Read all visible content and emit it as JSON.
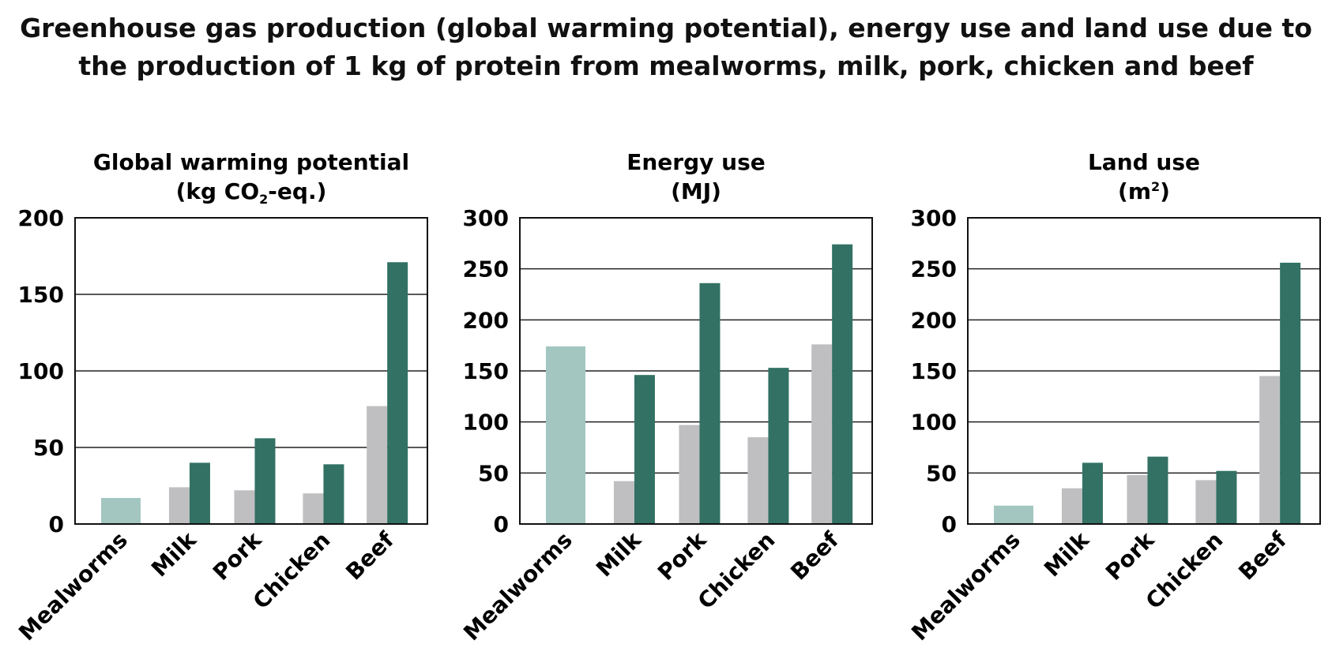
{
  "title": {
    "line1": "Greenhouse gas production (global warming potential), energy use and land use due to",
    "line2": "the production of 1 kg of protein from mealworms, milk, pork, chicken and beef"
  },
  "colors": {
    "mealworms": "#a3c6c0",
    "lower": "#bfbfc1",
    "upper": "#327163",
    "grid": "#222222"
  },
  "chart_data": [
    {
      "type": "bar",
      "title": "Global warming potential",
      "unit_prefix": "(kg CO",
      "unit_sub": "2",
      "unit_suffix": "-eq.)",
      "categories": [
        "Mealworms",
        "Milk",
        "Pork",
        "Chicken",
        "Beef"
      ],
      "ylim": [
        0,
        200
      ],
      "yticks": [
        0,
        50,
        100,
        150,
        200
      ],
      "grid": true,
      "series": [
        {
          "values": [
            17,
            24,
            22,
            20,
            77
          ]
        },
        {
          "values": [
            null,
            40,
            56,
            39,
            171
          ]
        }
      ]
    },
    {
      "type": "bar",
      "title": "Energy use",
      "unit_prefix": "(MJ)",
      "unit_sub": "",
      "unit_suffix": "",
      "categories": [
        "Mealworms",
        "Milk",
        "Pork",
        "Chicken",
        "Beef"
      ],
      "ylim": [
        0,
        300
      ],
      "yticks": [
        0,
        50,
        100,
        150,
        200,
        250,
        300
      ],
      "grid": true,
      "series": [
        {
          "values": [
            174,
            42,
            97,
            85,
            176
          ]
        },
        {
          "values": [
            null,
            146,
            236,
            153,
            274
          ]
        }
      ]
    },
    {
      "type": "bar",
      "title": "Land use",
      "unit_prefix": "(m",
      "unit_sub": "",
      "unit_sup": "2",
      "unit_suffix": ")",
      "categories": [
        "Mealworms",
        "Milk",
        "Pork",
        "Chicken",
        "Beef"
      ],
      "ylim": [
        0,
        300
      ],
      "yticks": [
        0,
        50,
        100,
        150,
        200,
        250,
        300
      ],
      "grid": true,
      "series": [
        {
          "values": [
            18,
            35,
            48,
            43,
            145
          ]
        },
        {
          "values": [
            null,
            60,
            66,
            52,
            256
          ]
        }
      ]
    }
  ]
}
